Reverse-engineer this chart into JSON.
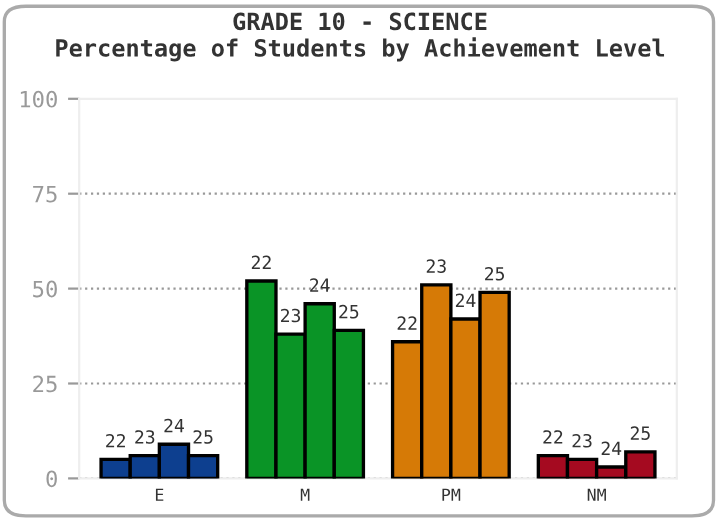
{
  "chart_data": {
    "type": "bar",
    "title": "GRADE 10 - SCIENCE",
    "subtitle": "Percentage of Students by Achievement Level",
    "categories": [
      "E",
      "M",
      "PM",
      "NM"
    ],
    "series": [
      {
        "name": "22",
        "colors": [
          "#0d3f8f",
          "#0a9426",
          "#d67a06",
          "#a50a20"
        ],
        "values": [
          5,
          52,
          36,
          6
        ]
      },
      {
        "name": "23",
        "colors": [
          "#0d3f8f",
          "#0a9426",
          "#d67a06",
          "#a50a20"
        ],
        "values": [
          6,
          38,
          51,
          5
        ]
      },
      {
        "name": "24",
        "colors": [
          "#0d3f8f",
          "#0a9426",
          "#d67a06",
          "#a50a20"
        ],
        "values": [
          9,
          46,
          42,
          3
        ]
      },
      {
        "name": "25",
        "colors": [
          "#0d3f8f",
          "#0a9426",
          "#d67a06",
          "#a50a20"
        ],
        "values": [
          6,
          39,
          49,
          7
        ]
      }
    ],
    "ylim": [
      0,
      100
    ],
    "yticks": [
      0,
      25,
      50,
      75,
      100
    ],
    "grid": "y",
    "legend": false
  }
}
